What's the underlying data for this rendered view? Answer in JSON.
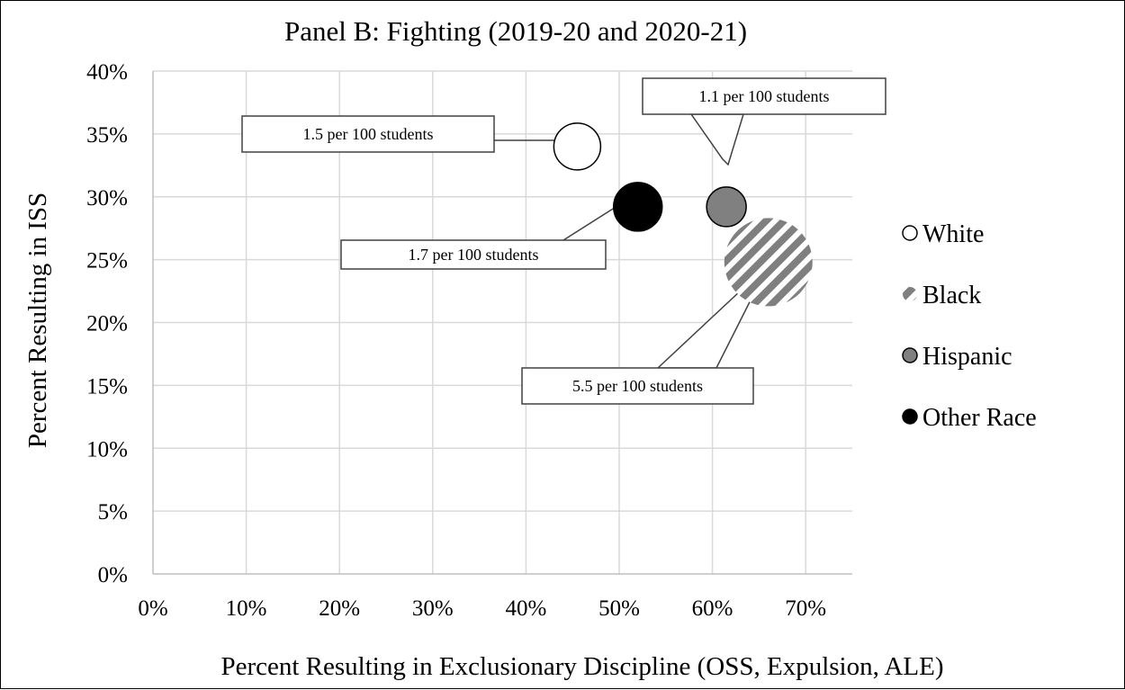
{
  "chart_data": {
    "type": "bubble",
    "title": "Panel B: Fighting (2019-20 and 2020-21)",
    "xlabel": "Percent Resulting in Exclusionary Discipline (OSS, Expulsion, ALE)",
    "ylabel": "Percent Resulting in ISS",
    "xlim": [
      0,
      0.75
    ],
    "ylim": [
      0,
      0.4
    ],
    "x_ticks": [
      0,
      0.1,
      0.2,
      0.3,
      0.4,
      0.5,
      0.6,
      0.7
    ],
    "x_tick_labels": [
      "0%",
      "10%",
      "20%",
      "30%",
      "40%",
      "50%",
      "60%",
      "70%"
    ],
    "y_ticks": [
      0,
      0.05,
      0.1,
      0.15,
      0.2,
      0.25,
      0.3,
      0.35,
      0.4
    ],
    "y_tick_labels": [
      "0%",
      "5%",
      "10%",
      "15%",
      "20%",
      "25%",
      "30%",
      "35%",
      "40%"
    ],
    "grid": true,
    "legend_position": "right",
    "series": [
      {
        "name": "White",
        "x": 0.455,
        "y": 0.34,
        "size": 1.5,
        "fill": "#ffffff",
        "stroke": "#000000",
        "pattern": "none",
        "annotation": "1.5 per 100 students"
      },
      {
        "name": "Black",
        "x": 0.66,
        "y": 0.248,
        "size": 5.5,
        "fill": "#7f7f7f",
        "stroke": "none",
        "pattern": "diagonal-stripes",
        "annotation": "5.5 per 100 students"
      },
      {
        "name": "Hispanic",
        "x": 0.615,
        "y": 0.292,
        "size": 1.1,
        "fill": "#808080",
        "stroke": "#000000",
        "pattern": "none",
        "annotation": "1.1 per 100 students"
      },
      {
        "name": "Other Race",
        "x": 0.52,
        "y": 0.292,
        "size": 1.7,
        "fill": "#000000",
        "stroke": "#000000",
        "pattern": "none",
        "annotation": "1.7 per 100 students"
      }
    ]
  }
}
